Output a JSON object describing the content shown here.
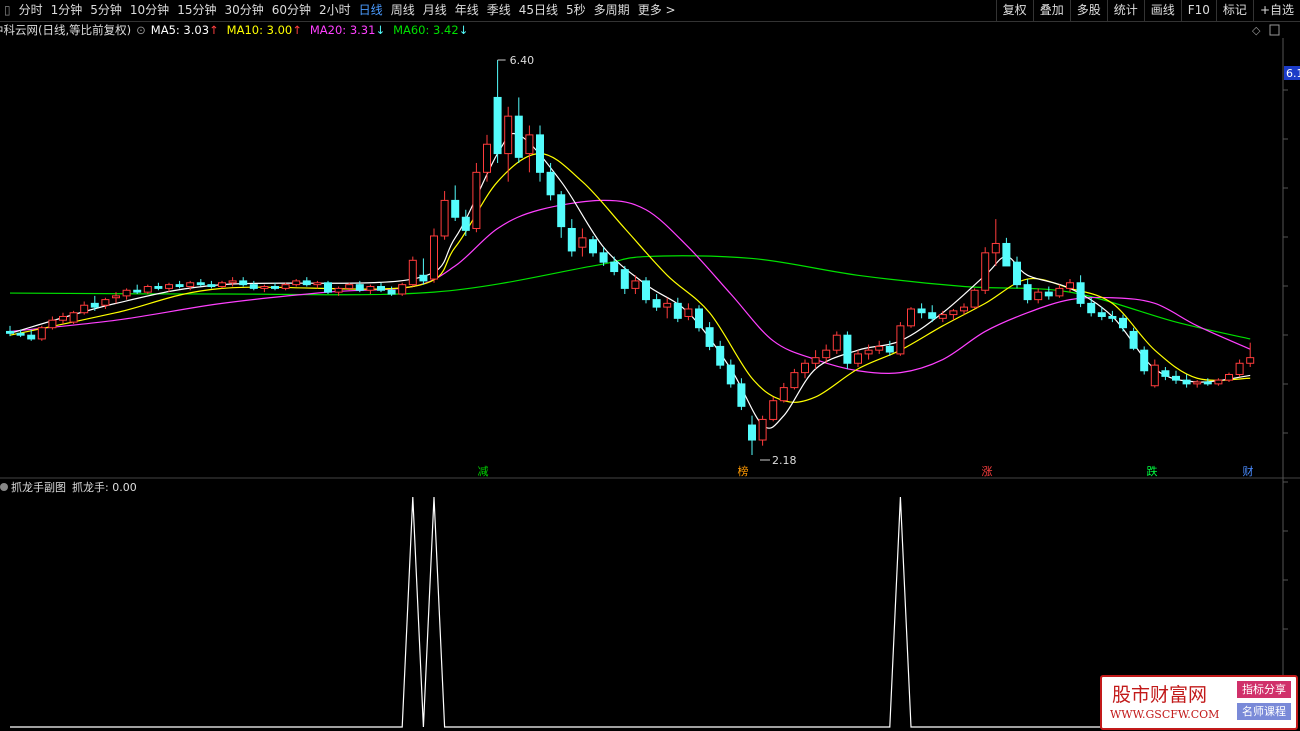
{
  "toolbar": {
    "periods": [
      "分时",
      "1分钟",
      "5分钟",
      "10分钟",
      "15分钟",
      "30分钟",
      "60分钟",
      "2小时",
      "日线",
      "周线",
      "月线",
      "年线",
      "季线",
      "45日线",
      "5秒",
      "多周期",
      "更多 >"
    ],
    "selected_index": 8,
    "tools": [
      "复权",
      "叠加",
      "多股",
      "统计",
      "画线",
      "F10",
      "标记",
      "+自选"
    ]
  },
  "info": {
    "title": "中科云网(日线,等比前复权)",
    "ma": [
      {
        "label": "MA5: 3.03",
        "arrow": "↑",
        "color": "#ffffff",
        "arrow_color": "#ff4040"
      },
      {
        "label": "MA10: 3.00",
        "arrow": "↑",
        "color": "#ffff00",
        "arrow_color": "#ff4040"
      },
      {
        "label": "MA20: 3.31",
        "arrow": "↓",
        "color": "#ff40ff",
        "arrow_color": "#54fcfc"
      },
      {
        "label": "MA60: 3.42",
        "arrow": "↓",
        "color": "#00e000",
        "arrow_color": "#54fcfc"
      }
    ]
  },
  "main": {
    "ylim": [
      2.18,
      6.4
    ],
    "axis_badge": "6.1",
    "high_label": "6.40",
    "low_label": "2.18",
    "up_color": "#ff3c3c",
    "down_color": "#54fcfc",
    "candles": [
      [
        3.5,
        3.56,
        3.45,
        3.48
      ],
      [
        3.48,
        3.52,
        3.44,
        3.46
      ],
      [
        3.46,
        3.52,
        3.4,
        3.42
      ],
      [
        3.42,
        3.56,
        3.4,
        3.54
      ],
      [
        3.54,
        3.66,
        3.52,
        3.62
      ],
      [
        3.62,
        3.7,
        3.58,
        3.66
      ],
      [
        3.6,
        3.72,
        3.58,
        3.7
      ],
      [
        3.7,
        3.82,
        3.68,
        3.78
      ],
      [
        3.8,
        3.88,
        3.72,
        3.76
      ],
      [
        3.78,
        3.86,
        3.74,
        3.84
      ],
      [
        3.86,
        3.92,
        3.8,
        3.88
      ],
      [
        3.88,
        3.96,
        3.84,
        3.94
      ],
      [
        3.94,
        4.0,
        3.9,
        3.92
      ],
      [
        3.92,
        4.0,
        3.9,
        3.98
      ],
      [
        3.98,
        4.02,
        3.94,
        3.96
      ],
      [
        3.96,
        4.02,
        3.92,
        4.0
      ],
      [
        4.0,
        4.04,
        3.96,
        3.98
      ],
      [
        3.98,
        4.04,
        3.94,
        4.02
      ],
      [
        4.02,
        4.06,
        3.98,
        4.0
      ],
      [
        4.0,
        4.04,
        3.96,
        3.98
      ],
      [
        3.98,
        4.04,
        3.96,
        4.02
      ],
      [
        4.02,
        4.08,
        3.98,
        4.04
      ],
      [
        4.04,
        4.08,
        3.98,
        4.0
      ],
      [
        4.0,
        4.04,
        3.94,
        3.96
      ],
      [
        3.96,
        4.0,
        3.92,
        3.98
      ],
      [
        3.98,
        4.02,
        3.94,
        3.96
      ],
      [
        3.96,
        4.02,
        3.94,
        4.0
      ],
      [
        4.0,
        4.06,
        3.98,
        4.04
      ],
      [
        4.04,
        4.08,
        3.98,
        4.0
      ],
      [
        4.0,
        4.04,
        3.96,
        4.02
      ],
      [
        4.02,
        4.04,
        3.9,
        3.92
      ],
      [
        3.92,
        3.98,
        3.88,
        3.96
      ],
      [
        3.96,
        4.02,
        3.94,
        4.0
      ],
      [
        4.0,
        4.04,
        3.92,
        3.94
      ],
      [
        3.94,
        4.0,
        3.9,
        3.98
      ],
      [
        3.98,
        4.02,
        3.92,
        3.94
      ],
      [
        3.94,
        3.98,
        3.88,
        3.9
      ],
      [
        3.9,
        4.02,
        3.88,
        4.0
      ],
      [
        4.0,
        4.3,
        3.98,
        4.26
      ],
      [
        4.1,
        4.28,
        4.0,
        4.04
      ],
      [
        4.06,
        4.6,
        4.02,
        4.52
      ],
      [
        4.52,
        5.0,
        4.48,
        4.9
      ],
      [
        4.9,
        5.06,
        4.68,
        4.72
      ],
      [
        4.72,
        4.8,
        4.52,
        4.58
      ],
      [
        4.6,
        5.3,
        4.56,
        5.2
      ],
      [
        5.2,
        5.6,
        5.1,
        5.5
      ],
      [
        6.0,
        6.4,
        5.3,
        5.4
      ],
      [
        5.4,
        5.9,
        5.1,
        5.8
      ],
      [
        5.8,
        6.0,
        5.3,
        5.36
      ],
      [
        5.4,
        5.7,
        5.2,
        5.6
      ],
      [
        5.6,
        5.7,
        5.1,
        5.2
      ],
      [
        5.2,
        5.3,
        4.9,
        4.96
      ],
      [
        4.96,
        5.0,
        4.5,
        4.62
      ],
      [
        4.6,
        4.7,
        4.3,
        4.36
      ],
      [
        4.4,
        4.6,
        4.3,
        4.5
      ],
      [
        4.48,
        4.52,
        4.3,
        4.34
      ],
      [
        4.34,
        4.4,
        4.2,
        4.24
      ],
      [
        4.24,
        4.3,
        4.1,
        4.14
      ],
      [
        4.16,
        4.2,
        3.9,
        3.96
      ],
      [
        3.96,
        4.1,
        3.9,
        4.04
      ],
      [
        4.04,
        4.08,
        3.8,
        3.84
      ],
      [
        3.84,
        3.9,
        3.72,
        3.76
      ],
      [
        3.76,
        3.86,
        3.64,
        3.8
      ],
      [
        3.8,
        3.86,
        3.6,
        3.64
      ],
      [
        3.66,
        3.8,
        3.62,
        3.74
      ],
      [
        3.74,
        3.78,
        3.5,
        3.54
      ],
      [
        3.54,
        3.6,
        3.3,
        3.34
      ],
      [
        3.34,
        3.4,
        3.1,
        3.14
      ],
      [
        3.14,
        3.2,
        2.9,
        2.94
      ],
      [
        2.94,
        3.0,
        2.66,
        2.7
      ],
      [
        2.5,
        2.6,
        2.18,
        2.34
      ],
      [
        2.34,
        2.6,
        2.28,
        2.56
      ],
      [
        2.56,
        2.8,
        2.54,
        2.76
      ],
      [
        2.76,
        2.95,
        2.74,
        2.9
      ],
      [
        2.9,
        3.1,
        2.88,
        3.06
      ],
      [
        3.06,
        3.2,
        3.0,
        3.16
      ],
      [
        3.16,
        3.3,
        3.1,
        3.22
      ],
      [
        3.22,
        3.36,
        3.16,
        3.3
      ],
      [
        3.3,
        3.5,
        3.26,
        3.46
      ],
      [
        3.46,
        3.5,
        3.1,
        3.16
      ],
      [
        3.16,
        3.3,
        3.12,
        3.26
      ],
      [
        3.26,
        3.36,
        3.2,
        3.3
      ],
      [
        3.3,
        3.4,
        3.26,
        3.34
      ],
      [
        3.34,
        3.4,
        3.24,
        3.28
      ],
      [
        3.26,
        3.6,
        3.24,
        3.56
      ],
      [
        3.56,
        3.76,
        3.54,
        3.74
      ],
      [
        3.74,
        3.8,
        3.64,
        3.7
      ],
      [
        3.7,
        3.78,
        3.6,
        3.64
      ],
      [
        3.64,
        3.72,
        3.6,
        3.68
      ],
      [
        3.68,
        3.74,
        3.62,
        3.72
      ],
      [
        3.72,
        3.8,
        3.68,
        3.76
      ],
      [
        3.76,
        3.96,
        3.74,
        3.94
      ],
      [
        3.94,
        4.4,
        3.9,
        4.34
      ],
      [
        4.34,
        4.7,
        4.2,
        4.44
      ],
      [
        4.44,
        4.5,
        4.2,
        4.2
      ],
      [
        4.24,
        4.3,
        3.96,
        4.0
      ],
      [
        4.0,
        4.06,
        3.8,
        3.84
      ],
      [
        3.84,
        3.96,
        3.8,
        3.92
      ],
      [
        3.92,
        3.98,
        3.84,
        3.88
      ],
      [
        3.88,
        4.0,
        3.86,
        3.96
      ],
      [
        3.96,
        4.06,
        3.92,
        4.02
      ],
      [
        4.02,
        4.1,
        3.76,
        3.8
      ],
      [
        3.8,
        3.86,
        3.66,
        3.7
      ],
      [
        3.7,
        3.76,
        3.62,
        3.66
      ],
      [
        3.66,
        3.72,
        3.6,
        3.64
      ],
      [
        3.64,
        3.68,
        3.5,
        3.54
      ],
      [
        3.5,
        3.54,
        3.3,
        3.32
      ],
      [
        3.3,
        3.34,
        3.04,
        3.08
      ],
      [
        2.92,
        3.2,
        2.9,
        3.14
      ],
      [
        3.08,
        3.12,
        2.98,
        3.02
      ],
      [
        3.02,
        3.08,
        2.94,
        2.98
      ],
      [
        2.98,
        3.04,
        2.9,
        2.94
      ],
      [
        2.94,
        2.98,
        2.9,
        2.96
      ],
      [
        2.96,
        3.0,
        2.92,
        2.94
      ],
      [
        2.94,
        3.0,
        2.92,
        2.98
      ],
      [
        2.98,
        3.06,
        2.96,
        3.04
      ],
      [
        3.04,
        3.2,
        3.02,
        3.16
      ],
      [
        3.16,
        3.38,
        3.12,
        3.22
      ]
    ],
    "ma_lines": [
      {
        "name": "MA60",
        "color": "#00e000",
        "x": [
          0,
          20,
          40,
          55,
          60,
          70,
          80,
          90,
          100,
          110,
          117
        ],
        "values": [
          3.91,
          3.9,
          3.92,
          4.2,
          4.3,
          4.28,
          4.1,
          3.98,
          3.92,
          3.6,
          3.42
        ]
      },
      {
        "name": "MA20",
        "color": "#ff40ff",
        "x": [
          0,
          10,
          20,
          30,
          38,
          42,
          46,
          50,
          56,
          60,
          64,
          68,
          72,
          76,
          80,
          84,
          88,
          92,
          96,
          100,
          104,
          108,
          112,
          117
        ],
        "values": [
          3.5,
          3.62,
          3.8,
          3.92,
          3.98,
          4.2,
          4.6,
          4.8,
          4.9,
          4.8,
          4.4,
          3.9,
          3.4,
          3.2,
          3.08,
          3.06,
          3.2,
          3.5,
          3.7,
          3.84,
          3.86,
          3.8,
          3.56,
          3.31
        ]
      },
      {
        "name": "MA10",
        "color": "#ffff00",
        "x": [
          0,
          10,
          20,
          38,
          42,
          46,
          50,
          54,
          58,
          62,
          66,
          70,
          73,
          76,
          80,
          84,
          88,
          92,
          96,
          100,
          104,
          108,
          112,
          117
        ],
        "values": [
          3.46,
          3.7,
          3.96,
          3.98,
          4.4,
          5.1,
          5.4,
          5.1,
          4.6,
          4.1,
          3.7,
          3.0,
          2.76,
          2.8,
          3.1,
          3.3,
          3.56,
          3.8,
          4.06,
          3.96,
          3.8,
          3.3,
          3.0,
          3.0
        ]
      },
      {
        "name": "MA5",
        "color": "#ffffff",
        "x": [
          0,
          10,
          20,
          38,
          42,
          46,
          48,
          52,
          56,
          60,
          64,
          68,
          71,
          73,
          76,
          80,
          84,
          88,
          92,
          94,
          96,
          100,
          104,
          108,
          112,
          117
        ],
        "values": [
          3.48,
          3.8,
          4.0,
          4.06,
          4.5,
          5.4,
          5.6,
          5.1,
          4.4,
          4.0,
          3.7,
          3.1,
          2.5,
          2.6,
          3.1,
          3.3,
          3.4,
          3.7,
          4.1,
          4.3,
          4.1,
          3.96,
          3.66,
          3.1,
          2.96,
          3.03
        ]
      }
    ],
    "markers": [
      {
        "label": "减",
        "color": "#00d000"
      },
      {
        "label": "榜",
        "color": "#ff9900"
      },
      {
        "label": "涨",
        "color": "#ff4040"
      },
      {
        "label": "跌",
        "color": "#00ff40"
      },
      {
        "label": "财",
        "color": "#4a8cff"
      }
    ]
  },
  "sub": {
    "title": "抓龙手副图",
    "value_label": "抓龙手: 0.00",
    "ylim": [
      0,
      1
    ],
    "x": [
      0,
      37,
      38,
      39,
      40,
      41,
      83,
      84,
      85,
      117
    ],
    "values": [
      0,
      0,
      1,
      0,
      1,
      0,
      0,
      1,
      0,
      0
    ]
  },
  "watermark": {
    "name": "股市财富网",
    "url": "WWW.GSCFW.COM",
    "tag1": "指标分享",
    "tag2": "名师课程"
  }
}
